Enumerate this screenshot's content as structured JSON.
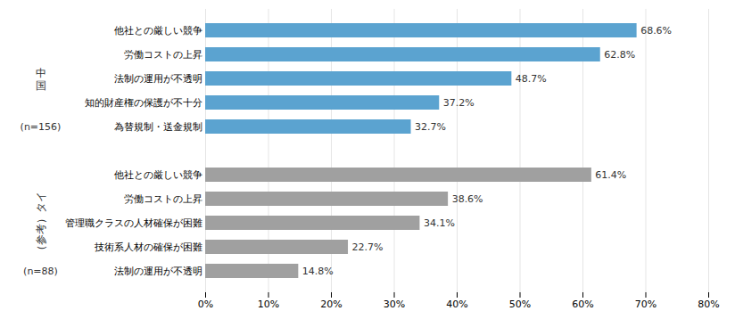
{
  "chart_data": {
    "type": "bar",
    "orientation": "horizontal",
    "groups": [
      {
        "label": "中\n国",
        "note": "(n=156)",
        "color": "#5ba3d0",
        "categories": [
          "他社との厳しい競争",
          "労働コストの上昇",
          "法制の運用が不透明",
          "知的財産権の保護が不十分",
          "為替規制・送金規制"
        ],
        "values": [
          68.6,
          62.8,
          48.7,
          37.2,
          32.7
        ],
        "value_labels": [
          "68.6%",
          "62.8%",
          "48.7%",
          "37.2%",
          "32.7%"
        ]
      },
      {
        "label": "（参考）タイ",
        "note": "(n=88)",
        "color": "#a0a0a0",
        "categories": [
          "他社との厳しい競争",
          "労働コストの上昇",
          "管理職クラスの人材確保が困難",
          "技術系人材の確保が困難",
          "法制の運用が不透明"
        ],
        "values": [
          61.4,
          38.6,
          34.1,
          22.7,
          14.8
        ],
        "value_labels": [
          "61.4%",
          "38.6%",
          "34.1%",
          "22.7%",
          "14.8%"
        ]
      }
    ],
    "xlim": [
      0,
      80
    ],
    "xticks": [
      {
        "value": 0,
        "label": "0%"
      },
      {
        "value": 10,
        "label": "10%"
      },
      {
        "value": 20,
        "label": "20%"
      },
      {
        "value": 30,
        "label": "30%"
      },
      {
        "value": 40,
        "label": "40%"
      },
      {
        "value": 50,
        "label": "50%"
      },
      {
        "value": 60,
        "label": "60%"
      },
      {
        "value": 70,
        "label": "70%"
      },
      {
        "value": 80,
        "label": "80%"
      }
    ],
    "grid": true,
    "data_labels": true
  }
}
